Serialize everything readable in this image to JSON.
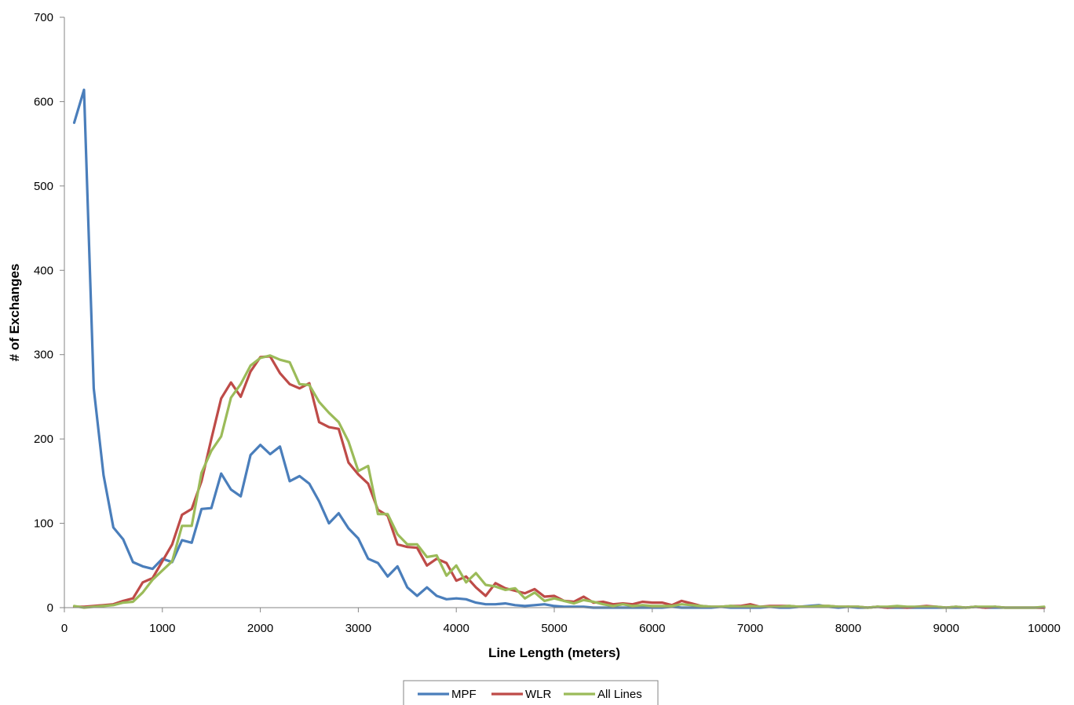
{
  "chart_data": {
    "type": "line",
    "title": "",
    "xlabel": "Line Length (meters)",
    "ylabel": "# of Exchanges",
    "xlim": [
      0,
      10000
    ],
    "ylim": [
      0,
      700
    ],
    "x_ticks": [
      0,
      1000,
      2000,
      3000,
      4000,
      5000,
      6000,
      7000,
      8000,
      9000,
      10000
    ],
    "x_tick_labels": [
      "0",
      "1000",
      "2000",
      "3000",
      "4000",
      "5000",
      "6000",
      "7000",
      "8000",
      "9000",
      "10000"
    ],
    "y_ticks": [
      0,
      100,
      200,
      300,
      400,
      500,
      600,
      700
    ],
    "y_tick_labels": [
      "0",
      "100",
      "200",
      "300",
      "400",
      "500",
      "600",
      "700"
    ],
    "grid": false,
    "legend_position": "bottom",
    "x": [
      100,
      200,
      300,
      400,
      500,
      600,
      700,
      800,
      900,
      1000,
      1100,
      1200,
      1300,
      1400,
      1500,
      1600,
      1700,
      1800,
      1900,
      2000,
      2100,
      2200,
      2300,
      2400,
      2500,
      2600,
      2700,
      2800,
      2900,
      3000,
      3100,
      3200,
      3300,
      3400,
      3500,
      3600,
      3700,
      3800,
      3900,
      4000,
      4100,
      4200,
      4300,
      4400,
      4500,
      4600,
      4700,
      4800,
      4900,
      5000,
      5100,
      5200,
      5300,
      5400,
      5500,
      5600,
      5700,
      5800,
      5900,
      6000,
      6100,
      6200,
      6300,
      6400,
      6500,
      6600,
      6700,
      6800,
      6900,
      7000,
      7100,
      7200,
      7300,
      7400,
      7500,
      7600,
      7700,
      7800,
      7900,
      8000,
      8100,
      8200,
      8300,
      8400,
      8500,
      8600,
      8700,
      8800,
      8900,
      9000,
      9100,
      9200,
      9300,
      9400,
      9500,
      9600,
      9700,
      9800,
      9900,
      10000
    ],
    "series": [
      {
        "name": "MPF",
        "color": "#4a7ebb",
        "values": [
          575,
          614,
          260,
          157,
          95,
          81,
          54,
          49,
          46,
          58,
          54,
          80,
          77,
          117,
          118,
          159,
          140,
          132,
          181,
          193,
          182,
          191,
          150,
          156,
          147,
          126,
          100,
          112,
          94,
          82,
          58,
          53,
          37,
          49,
          24,
          14,
          24,
          14,
          10,
          11,
          10,
          6,
          4,
          4,
          5,
          3,
          2,
          3,
          4,
          2,
          1,
          1,
          1,
          0,
          0,
          0,
          0,
          0,
          0,
          0,
          0,
          1,
          0,
          0,
          0,
          0,
          1,
          0,
          0,
          0,
          0,
          1,
          0,
          0,
          1,
          2,
          3,
          1,
          0,
          1,
          0,
          0,
          1,
          0,
          0,
          0,
          0,
          0,
          0,
          0,
          0,
          0,
          1,
          0,
          0,
          0,
          0,
          0,
          0,
          0
        ]
      },
      {
        "name": "WLR",
        "color": "#be4b48",
        "values": [
          1,
          1,
          2,
          3,
          4,
          8,
          11,
          30,
          35,
          55,
          75,
          110,
          117,
          150,
          200,
          248,
          267,
          250,
          280,
          297,
          298,
          278,
          265,
          260,
          266,
          220,
          214,
          212,
          172,
          158,
          147,
          116,
          109,
          75,
          72,
          71,
          50,
          58,
          53,
          32,
          37,
          24,
          14,
          29,
          23,
          20,
          17,
          22,
          13,
          14,
          8,
          7,
          13,
          6,
          7,
          4,
          5,
          4,
          7,
          6,
          6,
          3,
          8,
          5,
          2,
          1,
          1,
          2,
          2,
          4,
          1,
          2,
          2,
          2,
          1,
          1,
          2,
          2,
          1,
          1,
          1,
          0,
          1,
          0,
          1,
          0,
          1,
          2,
          1,
          0,
          1,
          0,
          1,
          0,
          1,
          0,
          0,
          0,
          0,
          0
        ]
      },
      {
        "name": "All Lines",
        "color": "#9bbb59",
        "values": [
          2,
          0,
          1,
          2,
          3,
          6,
          7,
          18,
          33,
          44,
          55,
          97,
          97,
          160,
          186,
          203,
          249,
          265,
          287,
          296,
          299,
          294,
          291,
          265,
          264,
          244,
          231,
          220,
          197,
          162,
          168,
          111,
          111,
          87,
          75,
          75,
          60,
          62,
          38,
          50,
          30,
          41,
          27,
          25,
          21,
          23,
          11,
          18,
          8,
          11,
          8,
          5,
          9,
          7,
          4,
          2,
          4,
          2,
          3,
          2,
          2,
          2,
          4,
          3,
          2,
          1,
          1,
          2,
          1,
          2,
          1,
          1,
          1,
          2,
          1,
          1,
          2,
          2,
          1,
          1,
          1,
          0,
          1,
          1,
          2,
          1,
          1,
          1,
          1,
          0,
          1,
          0,
          1,
          1,
          1,
          0,
          0,
          0,
          0,
          1
        ]
      }
    ]
  }
}
